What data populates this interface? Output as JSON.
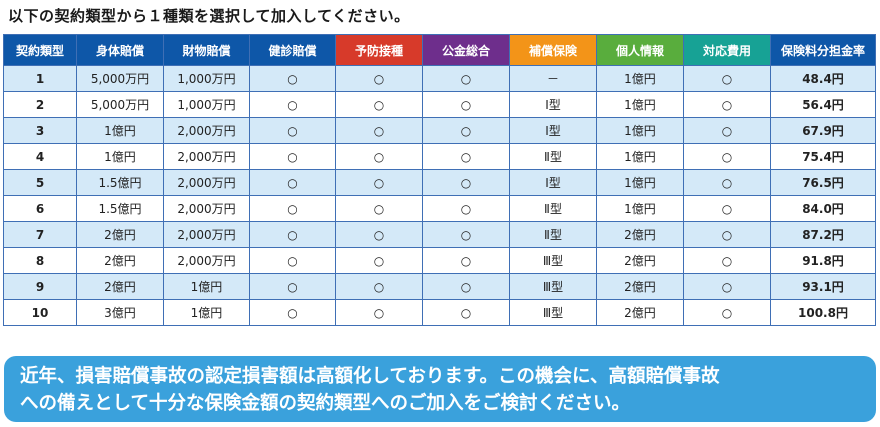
{
  "heading": "以下の契約類型から１種類を選択して加入してください。",
  "colors": {
    "header_blue": "#0e57a8",
    "header_red": "#d73a2a",
    "header_purple": "#6e2e8c",
    "header_orange": "#f39418",
    "header_green": "#59ad3d",
    "header_teal": "#17a295",
    "stripe": "#d4e9f8",
    "notice_bg": "#3aa1dc"
  },
  "table": {
    "headers": [
      {
        "label": "契約類型",
        "color": "#0e57a8"
      },
      {
        "label": "身体賠償",
        "color": "#0e57a8"
      },
      {
        "label": "財物賠償",
        "color": "#0e57a8"
      },
      {
        "label": "健診賠償",
        "color": "#0e57a8"
      },
      {
        "label": "予防接種",
        "color": "#d73a2a"
      },
      {
        "label": "公金総合",
        "color": "#6e2e8c"
      },
      {
        "label": "補償保険",
        "color": "#f39418"
      },
      {
        "label": "個人情報",
        "color": "#59ad3d"
      },
      {
        "label": "対応費用",
        "color": "#17a295"
      },
      {
        "label": "保険料分担金率",
        "color": "#0e57a8"
      }
    ],
    "rows": [
      {
        "no": "1",
        "bodily": "5,000万円",
        "property": "1,000万円",
        "checkup": "○",
        "vaccine": "○",
        "public_fund": "○",
        "compensation": "－",
        "personal_info": "1億円",
        "response_cost": "○",
        "rate": "48.4",
        "unit": "円"
      },
      {
        "no": "2",
        "bodily": "5,000万円",
        "property": "1,000万円",
        "checkup": "○",
        "vaccine": "○",
        "public_fund": "○",
        "compensation": "Ⅰ型",
        "personal_info": "1億円",
        "response_cost": "○",
        "rate": "56.4",
        "unit": "円"
      },
      {
        "no": "3",
        "bodily": "1億円",
        "property": "2,000万円",
        "checkup": "○",
        "vaccine": "○",
        "public_fund": "○",
        "compensation": "Ⅰ型",
        "personal_info": "1億円",
        "response_cost": "○",
        "rate": "67.9",
        "unit": "円"
      },
      {
        "no": "4",
        "bodily": "1億円",
        "property": "2,000万円",
        "checkup": "○",
        "vaccine": "○",
        "public_fund": "○",
        "compensation": "Ⅱ型",
        "personal_info": "1億円",
        "response_cost": "○",
        "rate": "75.4",
        "unit": "円"
      },
      {
        "no": "5",
        "bodily": "1.5億円",
        "property": "2,000万円",
        "checkup": "○",
        "vaccine": "○",
        "public_fund": "○",
        "compensation": "Ⅰ型",
        "personal_info": "1億円",
        "response_cost": "○",
        "rate": "76.5",
        "unit": "円"
      },
      {
        "no": "6",
        "bodily": "1.5億円",
        "property": "2,000万円",
        "checkup": "○",
        "vaccine": "○",
        "public_fund": "○",
        "compensation": "Ⅱ型",
        "personal_info": "1億円",
        "response_cost": "○",
        "rate": "84.0",
        "unit": "円"
      },
      {
        "no": "7",
        "bodily": "2億円",
        "property": "2,000万円",
        "checkup": "○",
        "vaccine": "○",
        "public_fund": "○",
        "compensation": "Ⅱ型",
        "personal_info": "2億円",
        "response_cost": "○",
        "rate": "87.2",
        "unit": "円"
      },
      {
        "no": "8",
        "bodily": "2億円",
        "property": "2,000万円",
        "checkup": "○",
        "vaccine": "○",
        "public_fund": "○",
        "compensation": "Ⅲ型",
        "personal_info": "2億円",
        "response_cost": "○",
        "rate": "91.8",
        "unit": "円"
      },
      {
        "no": "9",
        "bodily": "2億円",
        "property": "1億円",
        "checkup": "○",
        "vaccine": "○",
        "public_fund": "○",
        "compensation": "Ⅲ型",
        "personal_info": "2億円",
        "response_cost": "○",
        "rate": "93.1",
        "unit": "円"
      },
      {
        "no": "10",
        "bodily": "3億円",
        "property": "1億円",
        "checkup": "○",
        "vaccine": "○",
        "public_fund": "○",
        "compensation": "Ⅲ型",
        "personal_info": "2億円",
        "response_cost": "○",
        "rate": "100.8",
        "unit": "円"
      }
    ]
  },
  "notice": {
    "line1": "近年、損害賠償事故の認定損害額は高額化しております。この機会に、高額賠償事故",
    "line2": "への備えとして十分な保険金額の契約類型へのご加入をご検討ください。"
  }
}
